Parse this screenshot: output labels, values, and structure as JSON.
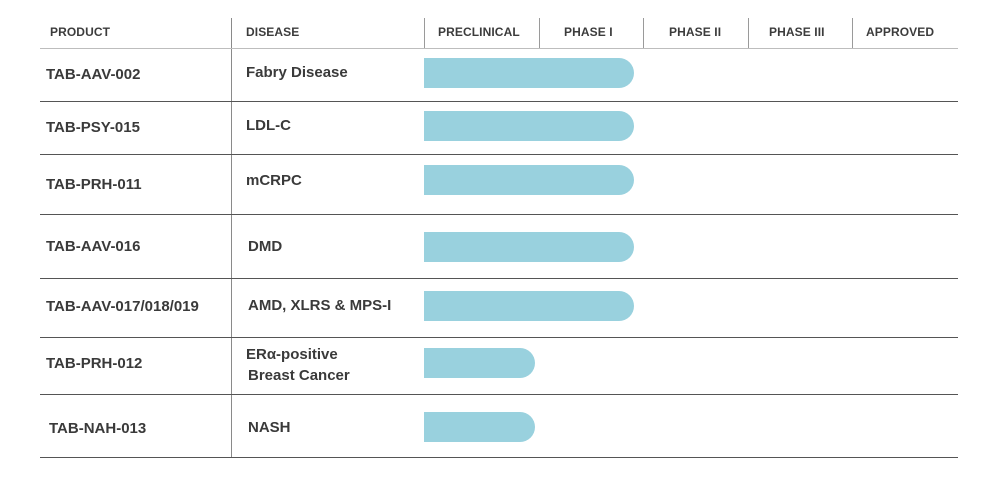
{
  "chart_data": {
    "type": "table",
    "phases": [
      "PRECLINICAL",
      "PHASE I",
      "PHASE II",
      "PHASE III",
      "APPROVED"
    ],
    "headers": {
      "product": "PRODUCT",
      "disease": "DISEASE"
    },
    "bar_color": "#99d1de",
    "rows": [
      {
        "product": "TAB-AAV-002",
        "disease": [
          "Fabry Disease"
        ],
        "stage": "PHASE I"
      },
      {
        "product": "TAB-PSY-015",
        "disease": [
          "LDL-C"
        ],
        "stage": "PHASE I"
      },
      {
        "product": "TAB-PRH-011",
        "disease": [
          "mCRPC"
        ],
        "stage": "PHASE I"
      },
      {
        "product": "TAB-AAV-016",
        "disease": [
          "DMD"
        ],
        "stage": "PHASE I"
      },
      {
        "product": "TAB-AAV-017/018/019",
        "disease": [
          "AMD, XLRS & MPS-I"
        ],
        "stage": "PHASE I"
      },
      {
        "product": "TAB-PRH-012",
        "disease": [
          "ERα-positive",
          "Breast Cancer"
        ],
        "stage": "PRECLINICAL"
      },
      {
        "product": "TAB-NAH-013",
        "disease": [
          "NASH"
        ],
        "stage": "PRECLINICAL"
      }
    ]
  }
}
